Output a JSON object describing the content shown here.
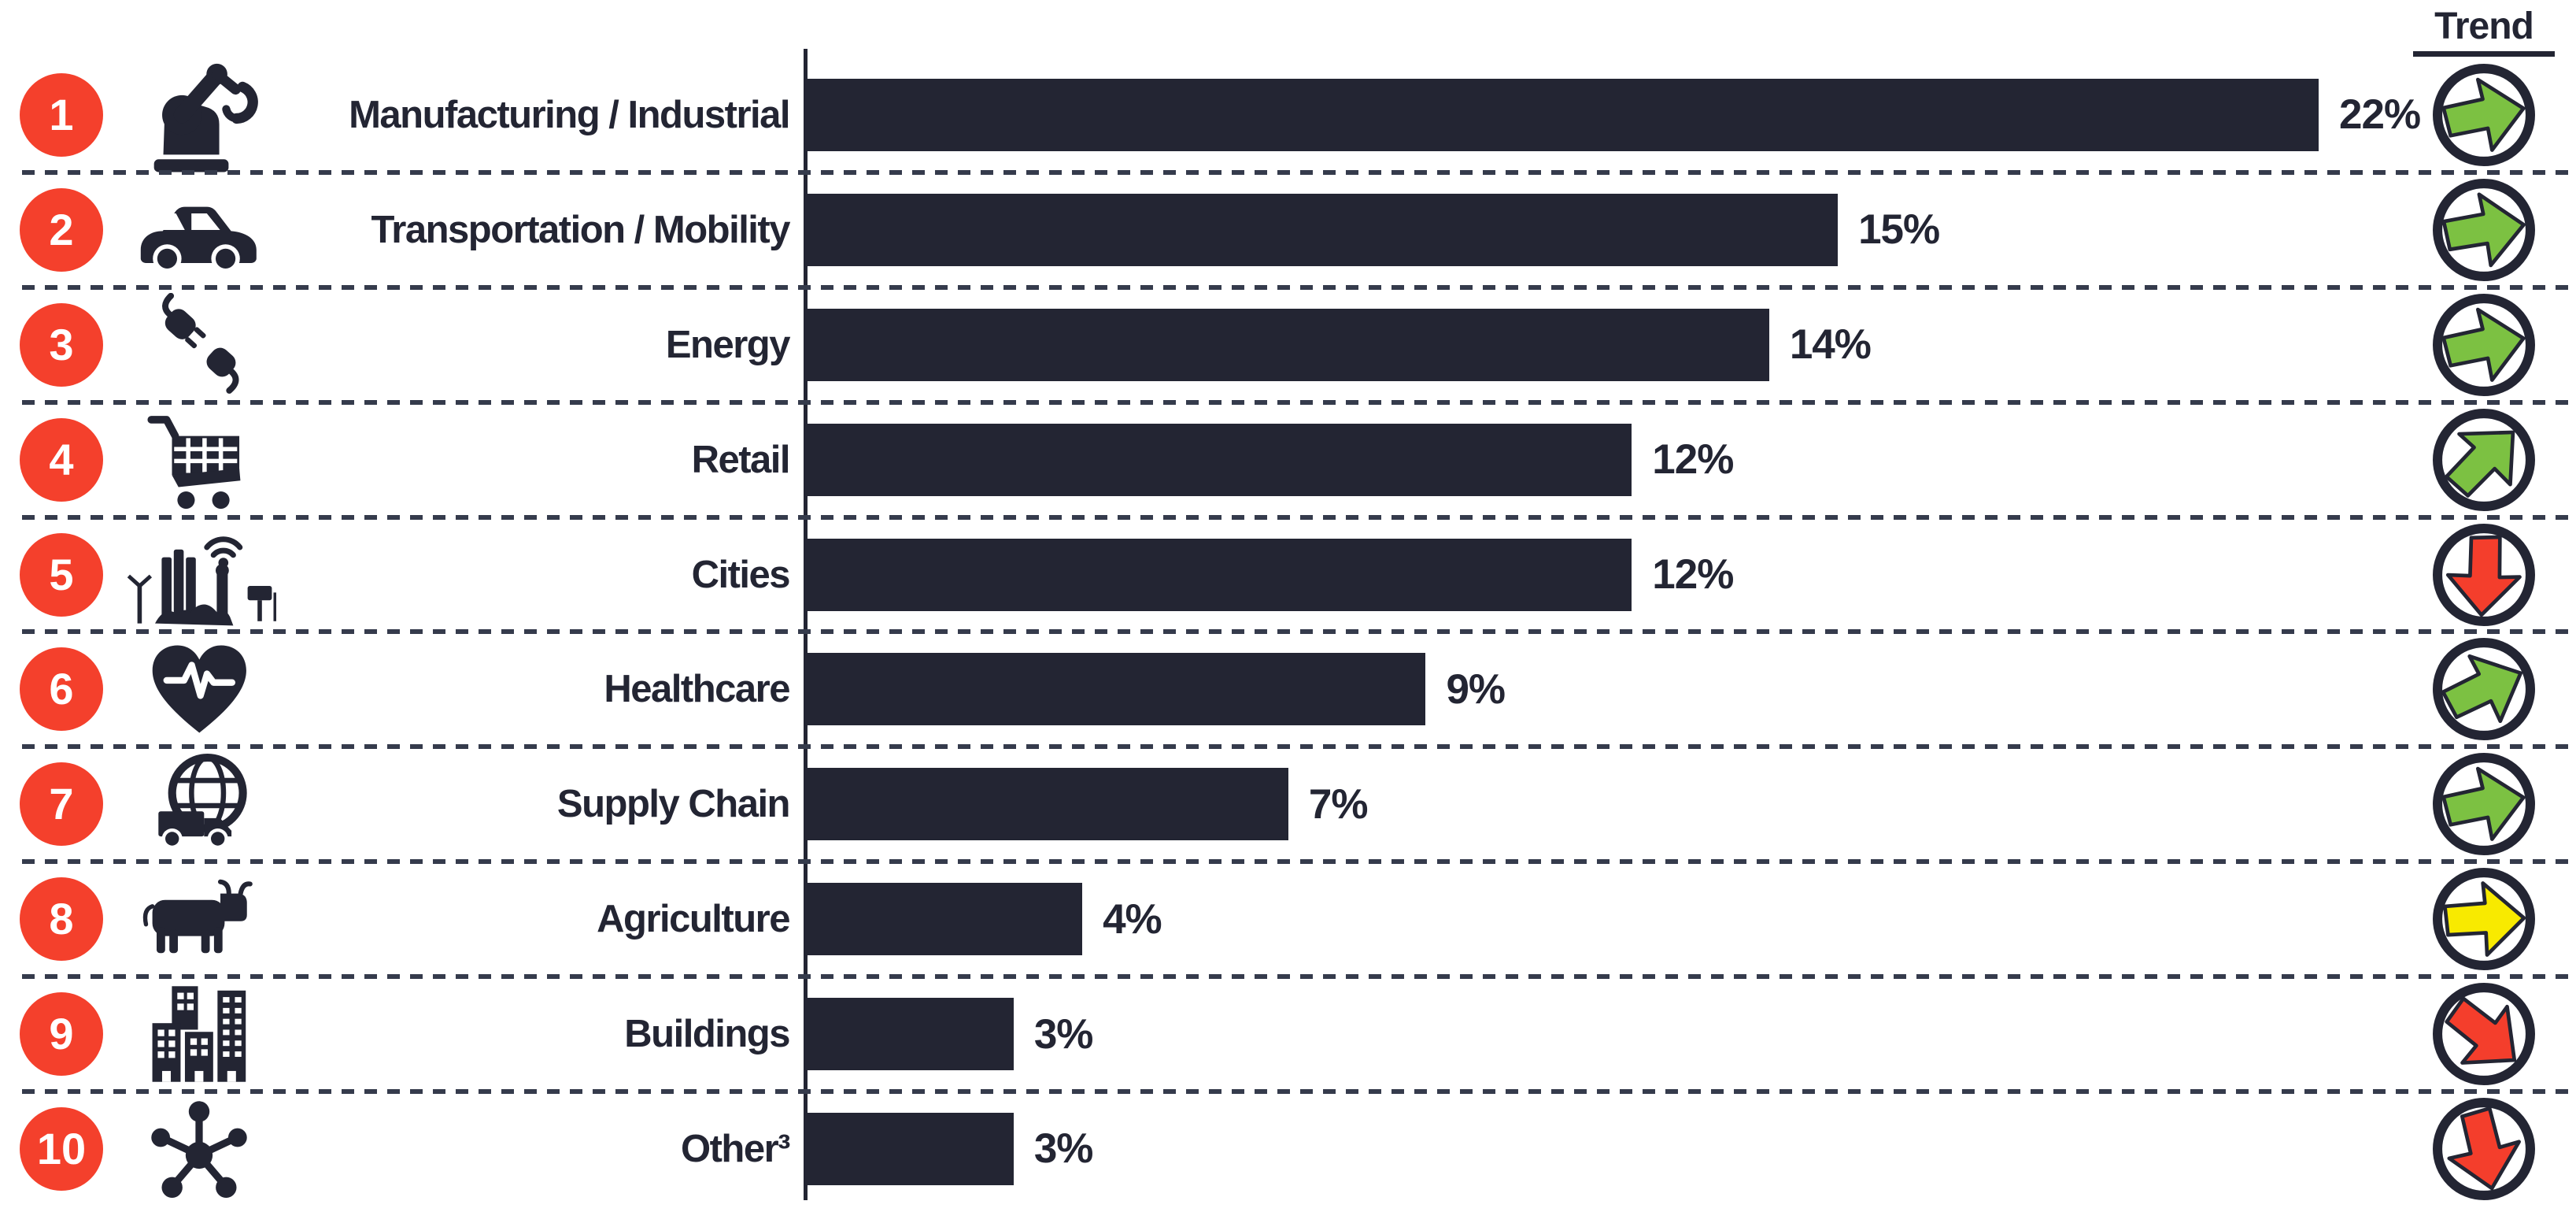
{
  "colors": {
    "ink": "#232533",
    "bar": "#232533",
    "badge_red": "#f4402c",
    "green": "#7cc142",
    "yellow": "#f8ea00",
    "red": "#f43e2c",
    "white": "#ffffff"
  },
  "header": {
    "trend_label": "Trend"
  },
  "chart_data": {
    "type": "bar",
    "orientation": "horizontal",
    "title": "",
    "xlabel": "",
    "ylabel": "",
    "xlim": [
      0,
      22
    ],
    "grid": "dashed-row-separators",
    "legend_position": "none",
    "categories": [
      "Manufacturing / Industrial",
      "Transportation / Mobility",
      "Energy",
      "Retail",
      "Cities",
      "Healthcare",
      "Supply Chain",
      "Agriculture",
      "Buildings",
      "Other³"
    ],
    "values": [
      22,
      15,
      14,
      12,
      12,
      9,
      7,
      4,
      3,
      3
    ],
    "trend_column_label": "Trend",
    "rows": [
      {
        "rank": "1",
        "label": "Manufacturing / Industrial",
        "value": 22,
        "value_label": "22%",
        "icon": "robot-arm-icon",
        "trend": {
          "direction": "flat-right",
          "color": "green",
          "angle": -8
        }
      },
      {
        "rank": "2",
        "label": "Transportation / Mobility",
        "value": 15,
        "value_label": "15%",
        "icon": "car-icon",
        "trend": {
          "direction": "flat-right",
          "color": "green",
          "angle": -6
        }
      },
      {
        "rank": "3",
        "label": "Energy",
        "value": 14,
        "value_label": "14%",
        "icon": "power-plug-icon",
        "trend": {
          "direction": "flat-right",
          "color": "green",
          "angle": -8
        }
      },
      {
        "rank": "4",
        "label": "Retail",
        "value": 12,
        "value_label": "12%",
        "icon": "shopping-cart-icon",
        "trend": {
          "direction": "up-right",
          "color": "green",
          "angle": -42
        }
      },
      {
        "rank": "5",
        "label": "Cities",
        "value": 12,
        "value_label": "12%",
        "icon": "smart-city-icon",
        "trend": {
          "direction": "down",
          "color": "red",
          "angle": 95
        }
      },
      {
        "rank": "6",
        "label": "Healthcare",
        "value": 9,
        "value_label": "9%",
        "icon": "heart-pulse-icon",
        "trend": {
          "direction": "up-slight",
          "color": "green",
          "angle": -22
        }
      },
      {
        "rank": "7",
        "label": "Supply Chain",
        "value": 7,
        "value_label": "7%",
        "icon": "globe-truck-icon",
        "trend": {
          "direction": "flat-right",
          "color": "green",
          "angle": -8
        }
      },
      {
        "rank": "8",
        "label": "Agriculture",
        "value": 4,
        "value_label": "4%",
        "icon": "cow-icon",
        "trend": {
          "direction": "flat-right",
          "color": "yellow",
          "angle": 0
        }
      },
      {
        "rank": "9",
        "label": "Buildings",
        "value": 3,
        "value_label": "3%",
        "icon": "buildings-icon",
        "trend": {
          "direction": "down-right",
          "color": "red",
          "angle": 42
        }
      },
      {
        "rank": "10",
        "label": "Other³",
        "value": 3,
        "value_label": "3%",
        "icon": "network-hub-icon",
        "trend": {
          "direction": "down",
          "color": "red",
          "angle": 80
        }
      }
    ]
  }
}
